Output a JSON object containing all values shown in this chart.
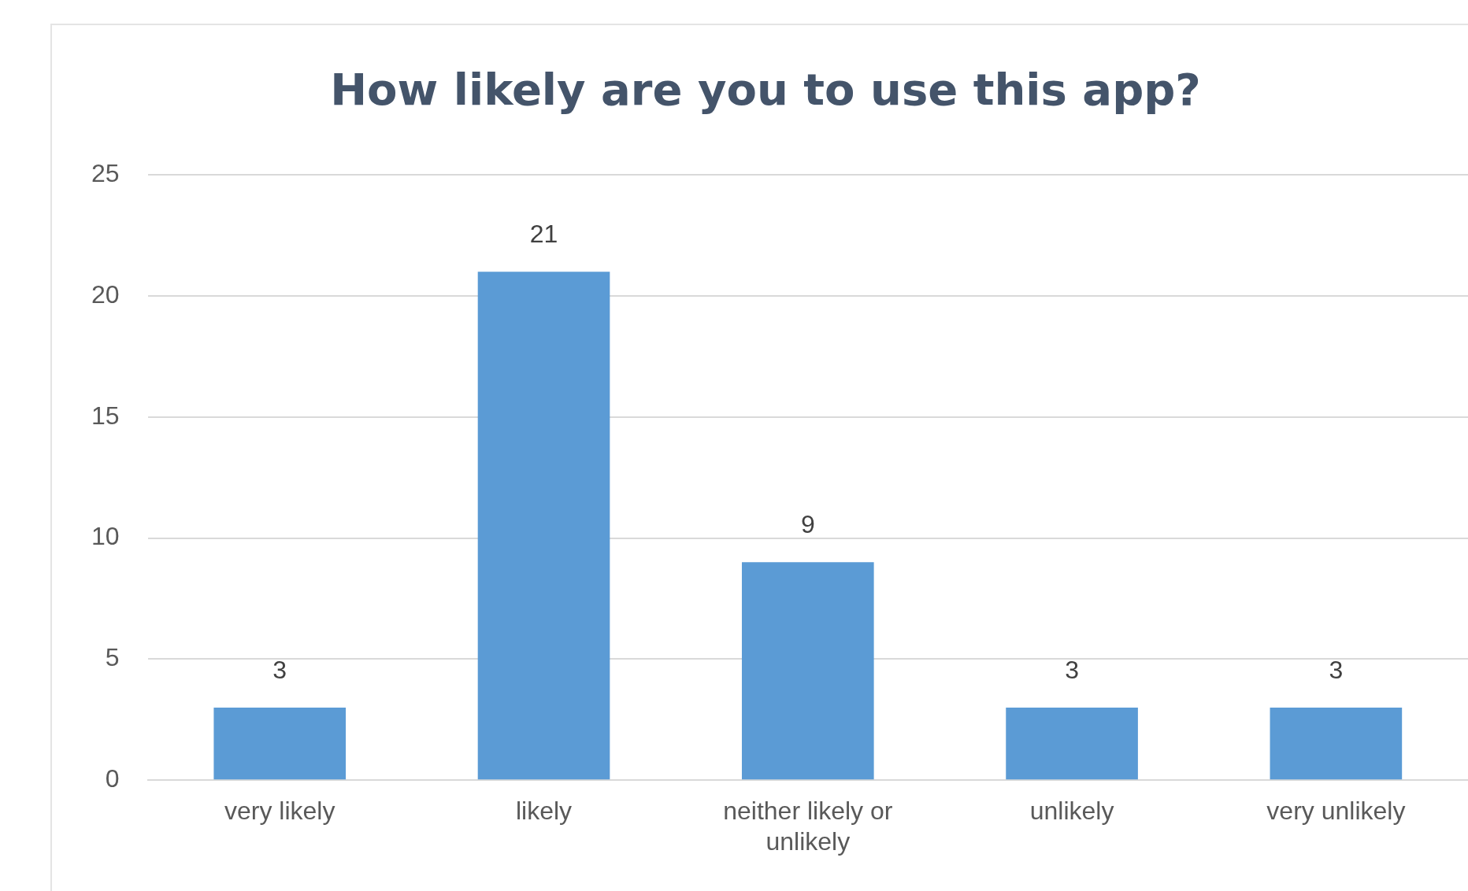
{
  "chart_data": {
    "type": "bar",
    "title": "How likely are you to use this app?",
    "categories": [
      "very likely",
      "likely",
      "neither likely or unlikely",
      "unlikely",
      "very unlikely"
    ],
    "values": [
      3,
      21,
      9,
      3,
      3
    ],
    "color": "#5b9bd5",
    "ylim": [
      0,
      25
    ],
    "yticks": [
      0,
      5,
      10,
      15,
      20,
      25
    ],
    "grid": "y",
    "data_labels": true
  }
}
